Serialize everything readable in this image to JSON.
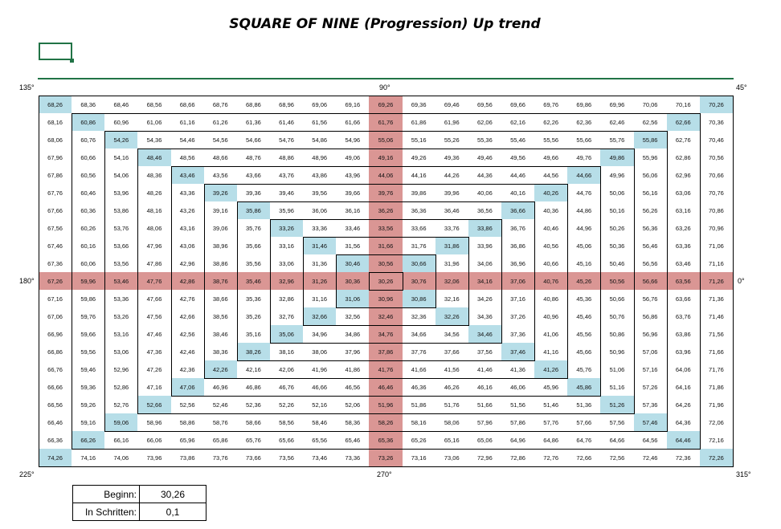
{
  "title": "SQUARE OF NINE (Progression) Up trend",
  "degrees": {
    "d135": "135°",
    "d90": "90°",
    "d45": "45°",
    "d180": "180°",
    "d0": "0°",
    "d225": "225°",
    "d270": "270°",
    "d315": "315°"
  },
  "info": {
    "start_label": "Beginn:",
    "start_value": "30,26",
    "step_label": "In Schritten:",
    "step_value": "0,1"
  },
  "colors": {
    "diagonal": "#b7dee8",
    "cross": "#da9694",
    "accent": "#217346"
  },
  "grid": {
    "rows": [
      [
        "68,26",
        "68,36",
        "68,46",
        "68,56",
        "68,66",
        "68,76",
        "68,86",
        "68,96",
        "69,06",
        "69,16",
        "69,26",
        "69,36",
        "69,46",
        "69,56",
        "69,66",
        "69,76",
        "69,86",
        "69,96",
        "70,06",
        "70,16",
        "70,26"
      ],
      [
        "68,16",
        "60,86",
        "60,96",
        "61,06",
        "61,16",
        "61,26",
        "61,36",
        "61,46",
        "61,56",
        "61,66",
        "61,76",
        "61,86",
        "61,96",
        "62,06",
        "62,16",
        "62,26",
        "62,36",
        "62,46",
        "62,56",
        "62,66",
        "70,36"
      ],
      [
        "68,06",
        "60,76",
        "54,26",
        "54,36",
        "54,46",
        "54,56",
        "54,66",
        "54,76",
        "54,86",
        "54,96",
        "55,06",
        "55,16",
        "55,26",
        "55,36",
        "55,46",
        "55,56",
        "55,66",
        "55,76",
        "55,86",
        "62,76",
        "70,46"
      ],
      [
        "67,96",
        "60,66",
        "54,16",
        "48,46",
        "48,56",
        "48,66",
        "48,76",
        "48,86",
        "48,96",
        "49,06",
        "49,16",
        "49,26",
        "49,36",
        "49,46",
        "49,56",
        "49,66",
        "49,76",
        "49,86",
        "55,96",
        "62,86",
        "70,56"
      ],
      [
        "67,86",
        "60,56",
        "54,06",
        "48,36",
        "43,46",
        "43,56",
        "43,66",
        "43,76",
        "43,86",
        "43,96",
        "44,06",
        "44,16",
        "44,26",
        "44,36",
        "44,46",
        "44,56",
        "44,66",
        "49,96",
        "56,06",
        "62,96",
        "70,66"
      ],
      [
        "67,76",
        "60,46",
        "53,96",
        "48,26",
        "43,36",
        "39,26",
        "39,36",
        "39,46",
        "39,56",
        "39,66",
        "39,76",
        "39,86",
        "39,96",
        "40,06",
        "40,16",
        "40,26",
        "44,76",
        "50,06",
        "56,16",
        "63,06",
        "70,76"
      ],
      [
        "67,66",
        "60,36",
        "53,86",
        "48,16",
        "43,26",
        "39,16",
        "35,86",
        "35,96",
        "36,06",
        "36,16",
        "36,26",
        "36,36",
        "36,46",
        "36,56",
        "36,66",
        "40,36",
        "44,86",
        "50,16",
        "56,26",
        "63,16",
        "70,86"
      ],
      [
        "67,56",
        "60,26",
        "53,76",
        "48,06",
        "43,16",
        "39,06",
        "35,76",
        "33,26",
        "33,36",
        "33,46",
        "33,56",
        "33,66",
        "33,76",
        "33,86",
        "36,76",
        "40,46",
        "44,96",
        "50,26",
        "56,36",
        "63,26",
        "70,96"
      ],
      [
        "67,46",
        "60,16",
        "53,66",
        "47,96",
        "43,06",
        "38,96",
        "35,66",
        "33,16",
        "31,46",
        "31,56",
        "31,66",
        "31,76",
        "31,86",
        "33,96",
        "36,86",
        "40,56",
        "45,06",
        "50,36",
        "56,46",
        "63,36",
        "71,06"
      ],
      [
        "67,36",
        "60,06",
        "53,56",
        "47,86",
        "42,96",
        "38,86",
        "35,56",
        "33,06",
        "31,36",
        "30,46",
        "30,56",
        "30,66",
        "31,96",
        "34,06",
        "36,96",
        "40,66",
        "45,16",
        "50,46",
        "56,56",
        "63,46",
        "71,16"
      ],
      [
        "67,26",
        "59,96",
        "53,46",
        "47,76",
        "42,86",
        "38,76",
        "35,46",
        "32,96",
        "31,26",
        "30,36",
        "30,26",
        "30,76",
        "32,06",
        "34,16",
        "37,06",
        "40,76",
        "45,26",
        "50,56",
        "56,66",
        "63,56",
        "71,26"
      ],
      [
        "67,16",
        "59,86",
        "53,36",
        "47,66",
        "42,76",
        "38,66",
        "35,36",
        "32,86",
        "31,16",
        "31,06",
        "30,96",
        "30,86",
        "32,16",
        "34,26",
        "37,16",
        "40,86",
        "45,36",
        "50,66",
        "56,76",
        "63,66",
        "71,36"
      ],
      [
        "67,06",
        "59,76",
        "53,26",
        "47,56",
        "42,66",
        "38,56",
        "35,26",
        "32,76",
        "32,66",
        "32,56",
        "32,46",
        "32,36",
        "32,26",
        "34,36",
        "37,26",
        "40,96",
        "45,46",
        "50,76",
        "56,86",
        "63,76",
        "71,46"
      ],
      [
        "66,96",
        "59,66",
        "53,16",
        "47,46",
        "42,56",
        "38,46",
        "35,16",
        "35,06",
        "34,96",
        "34,86",
        "34,76",
        "34,66",
        "34,56",
        "34,46",
        "37,36",
        "41,06",
        "45,56",
        "50,86",
        "56,96",
        "63,86",
        "71,56"
      ],
      [
        "66,86",
        "59,56",
        "53,06",
        "47,36",
        "42,46",
        "38,36",
        "38,26",
        "38,16",
        "38,06",
        "37,96",
        "37,86",
        "37,76",
        "37,66",
        "37,56",
        "37,46",
        "41,16",
        "45,66",
        "50,96",
        "57,06",
        "63,96",
        "71,66"
      ],
      [
        "66,76",
        "59,46",
        "52,96",
        "47,26",
        "42,36",
        "42,26",
        "42,16",
        "42,06",
        "41,96",
        "41,86",
        "41,76",
        "41,66",
        "41,56",
        "41,46",
        "41,36",
        "41,26",
        "45,76",
        "51,06",
        "57,16",
        "64,06",
        "71,76"
      ],
      [
        "66,66",
        "59,36",
        "52,86",
        "47,16",
        "47,06",
        "46,96",
        "46,86",
        "46,76",
        "46,66",
        "46,56",
        "46,46",
        "46,36",
        "46,26",
        "46,16",
        "46,06",
        "45,96",
        "45,86",
        "51,16",
        "57,26",
        "64,16",
        "71,86"
      ],
      [
        "66,56",
        "59,26",
        "52,76",
        "52,66",
        "52,56",
        "52,46",
        "52,36",
        "52,26",
        "52,16",
        "52,06",
        "51,96",
        "51,86",
        "51,76",
        "51,66",
        "51,56",
        "51,46",
        "51,36",
        "51,26",
        "57,36",
        "64,26",
        "71,96"
      ],
      [
        "66,46",
        "59,16",
        "59,06",
        "58,96",
        "58,86",
        "58,76",
        "58,66",
        "58,56",
        "58,46",
        "58,36",
        "58,26",
        "58,16",
        "58,06",
        "57,96",
        "57,86",
        "57,76",
        "57,66",
        "57,56",
        "57,46",
        "64,36",
        "72,06"
      ],
      [
        "66,36",
        "66,26",
        "66,16",
        "66,06",
        "65,96",
        "65,86",
        "65,76",
        "65,66",
        "65,56",
        "65,46",
        "65,36",
        "65,26",
        "65,16",
        "65,06",
        "64,96",
        "64,86",
        "64,76",
        "64,66",
        "64,56",
        "64,46",
        "72,16"
      ],
      [
        "74,26",
        "74,16",
        "74,06",
        "73,96",
        "73,86",
        "73,76",
        "73,66",
        "73,56",
        "73,46",
        "73,36",
        "73,26",
        "73,16",
        "73,06",
        "72,96",
        "72,86",
        "72,76",
        "72,66",
        "72,56",
        "72,46",
        "72,36",
        "72,26"
      ]
    ]
  }
}
